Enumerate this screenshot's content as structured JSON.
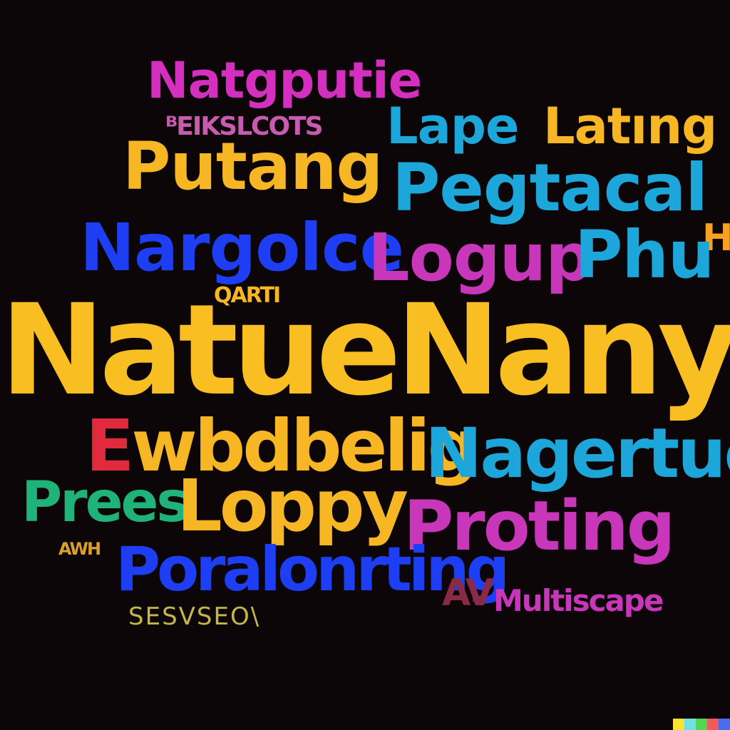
{
  "words": {
    "natgputie": "Natgputie",
    "eikslcots": "ᴮEIKSLCOTS",
    "lape": "Lape",
    "lating": "Latıng",
    "putang": "Putang",
    "pegtacal": "Pegtacal",
    "pk": "ᕼ",
    "nargolce": "Nargolce",
    "logup": "Logup",
    "phu": "Phu",
    "qarti": "QARTI",
    "main": "NatueNanypgc",
    "ewbdbelig_first": "E",
    "ewbdbelig_rest": "wbdbelig",
    "nagertuc": "Nagertuc",
    "prees": "Prees",
    "loppy": "Loppy",
    "proting": "Proting",
    "awh": "AWH",
    "poralonrting": "Poralonrting",
    "av": "AV",
    "multiscape": "Multiscape",
    "sesvseo": "SESVSEO\\"
  },
  "colors": {
    "background": "#0c0608",
    "yellow": "#f9be22",
    "blue": "#1d3ef2",
    "cyan": "#1da6d9",
    "magenta": "#c837b9",
    "red": "#e12a3c",
    "green": "#1fb37a"
  },
  "color_strip": [
    "#f7e330",
    "#6fe0e6",
    "#52d654",
    "#f25a5a",
    "#4a6df0"
  ]
}
